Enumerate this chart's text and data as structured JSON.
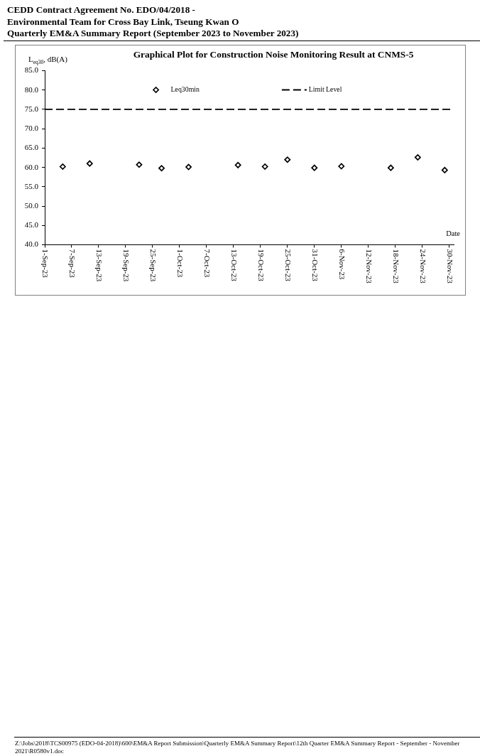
{
  "chart_data": {
    "type": "scatter",
    "title": "Graphical Plot for Construction Noise Monitoring Result at CNMS-5",
    "xlabel": "Date",
    "ylabel": "L$_{eq30}$, dB(A)",
    "annotations": [
      "CEDD Contract Agreement No. EDO/04/2018 -",
      "Environmental Team for Cross Bay Link, Tseung Kwan O",
      "Quarterly EM&A Summary Report (September 2023 to November 2023)",
      "Z:\\Jobs\\2018\\TCS00975 (EDO-04-2018)\\600\\EM&A Report Submission\\Quarterly EM&A Summary Report\\12th Quarter EM&A Summary Report - September - November 2021\\R0580v1.doc"
    ],
    "x": [
      "2023-09-05",
      "2023-09-11",
      "2023-09-22",
      "2023-09-27",
      "2023-10-03",
      "2023-10-14",
      "2023-10-20",
      "2023-10-25",
      "2023-10-31",
      "2023-11-06",
      "2023-11-17",
      "2023-11-23",
      "2023-11-29"
    ],
    "series": [
      {
        "name": "Leq30min",
        "color": "#000000",
        "values": [
          60.2,
          61.0,
          60.7,
          59.8,
          60.1,
          60.6,
          60.2,
          62.0,
          59.9,
          60.3,
          59.9,
          62.6,
          59.3
        ]
      }
    ],
    "ref_lines": [
      {
        "axis": "y",
        "value": 75,
        "label": "Limit Level",
        "color": "#000000",
        "line_style": "dashed"
      }
    ],
    "xlim": [
      "2023-09-01",
      "2023-12-01"
    ],
    "xticks": [
      {
        "value": "2023-09-01",
        "label": "1-Sep-23"
      },
      {
        "value": "2023-09-07",
        "label": "7-Sep-23"
      },
      {
        "value": "2023-09-13",
        "label": "13-Sep-23"
      },
      {
        "value": "2023-09-19",
        "label": "19-Sep-23"
      },
      {
        "value": "2023-09-25",
        "label": "25-Sep-23"
      },
      {
        "value": "2023-10-01",
        "label": "1-Oct-23"
      },
      {
        "value": "2023-10-07",
        "label": "7-Oct-23"
      },
      {
        "value": "2023-10-13",
        "label": "13-Oct-23"
      },
      {
        "value": "2023-10-19",
        "label": "19-Oct-23"
      },
      {
        "value": "2023-10-25",
        "label": "25-Oct-23"
      },
      {
        "value": "2023-10-31",
        "label": "31-Oct-23"
      },
      {
        "value": "2023-11-06",
        "label": "6-Nov-23"
      },
      {
        "value": "2023-11-12",
        "label": "12-Nov-23"
      },
      {
        "value": "2023-11-18",
        "label": "18-Nov-23"
      },
      {
        "value": "2023-11-24",
        "label": "24-Nov-23"
      },
      {
        "value": "2023-11-30",
        "label": "30-Nov-23"
      }
    ],
    "ylim": [
      40,
      85
    ],
    "yticks": [
      {
        "value": 40,
        "label": "40.0"
      },
      {
        "value": 45,
        "label": "45.0"
      },
      {
        "value": 50,
        "label": "50.0"
      },
      {
        "value": 55,
        "label": "55.0"
      },
      {
        "value": 60,
        "label": "60.0"
      },
      {
        "value": 65,
        "label": "65.0"
      },
      {
        "value": 70,
        "label": "70.0"
      },
      {
        "value": 75,
        "label": "75.0"
      },
      {
        "value": 80,
        "label": "80.0"
      },
      {
        "value": 85,
        "label": "85.0"
      }
    ],
    "legend": "top",
    "marker": "diamond"
  }
}
